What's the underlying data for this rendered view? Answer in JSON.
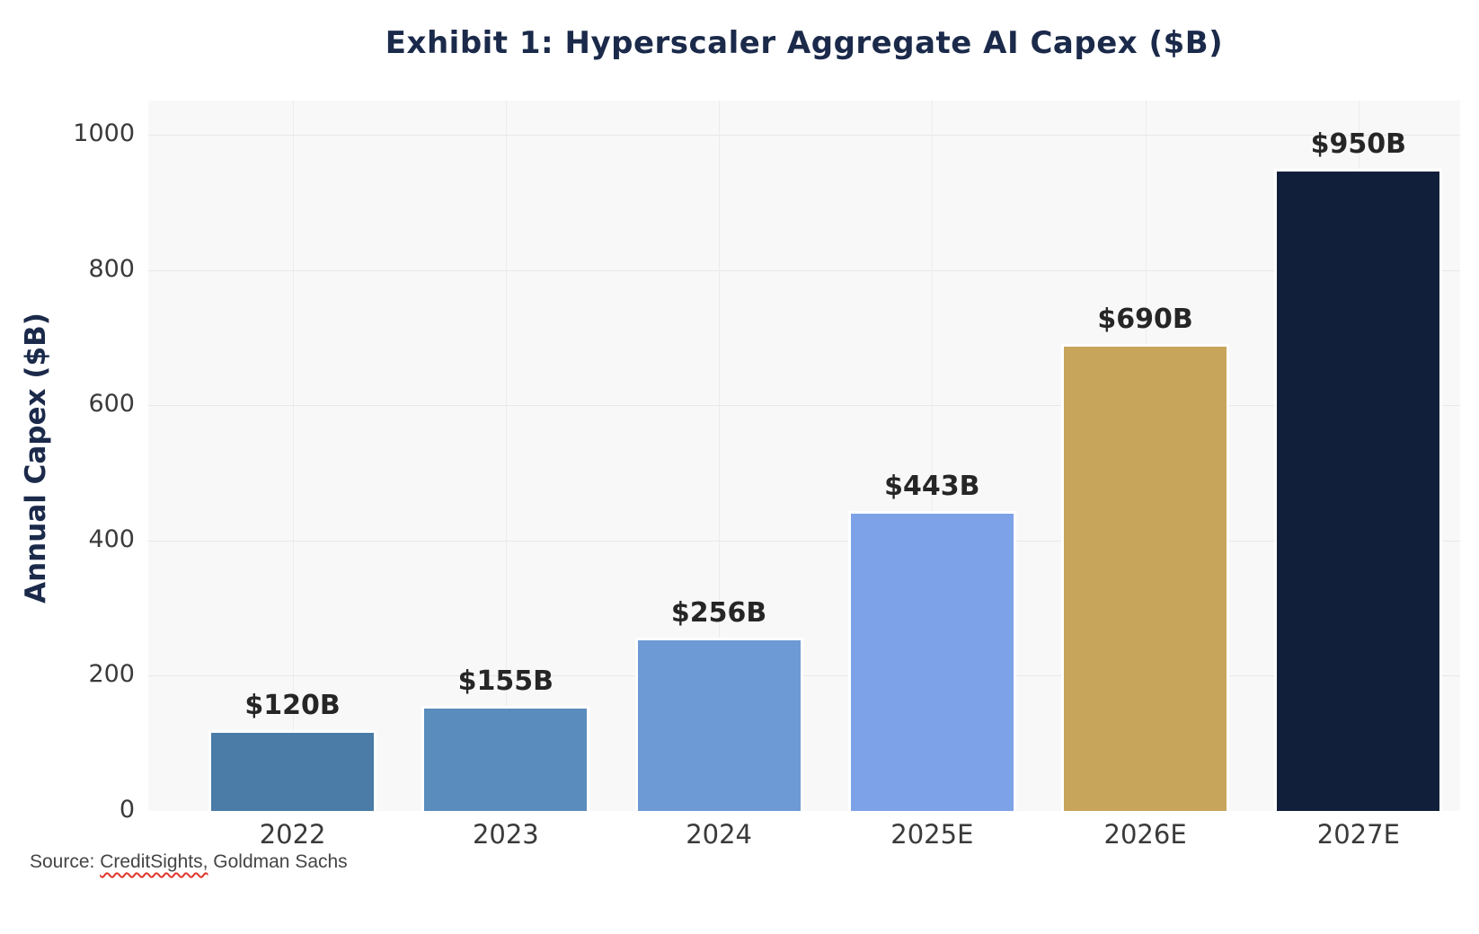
{
  "chart_data": {
    "type": "bar",
    "title": "Exhibit 1: Hyperscaler Aggregate AI Capex ($B)",
    "ylabel": "Annual Capex ($B)",
    "xlabel": "",
    "categories": [
      "2022",
      "2023",
      "2024",
      "2025E",
      "2026E",
      "2027E"
    ],
    "values": [
      120,
      155,
      256,
      443,
      690,
      950
    ],
    "value_labels": [
      "$120B",
      "$155B",
      "$256B",
      "$443B",
      "$690B",
      "$950B"
    ],
    "bar_colors": [
      "#4A7CA7",
      "#5A8CBE",
      "#6D9AD4",
      "#7DA2E8",
      "#C7A55A",
      "#121F3A"
    ],
    "ylim": [
      0,
      1000
    ],
    "yticks": [
      0,
      200,
      400,
      600,
      800,
      1000
    ],
    "grid": "on",
    "legend": "none",
    "plot_bg": "#f8f8f8",
    "title_color": "#1b2a4a",
    "tick_color": "#3a3a3a"
  },
  "source": {
    "prefix": "Source: ",
    "flagged": "CreditSights,",
    "rest": " Goldman Sachs"
  }
}
